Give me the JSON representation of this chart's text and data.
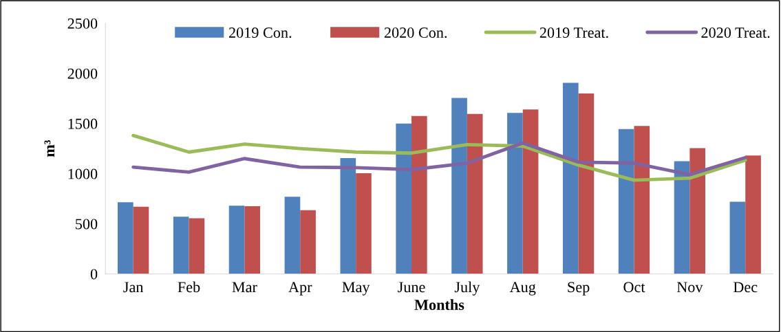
{
  "chart_data": {
    "type": "bar",
    "xlabel": "Months",
    "ylabel": "m³",
    "categories": [
      "Jan",
      "Feb",
      "Mar",
      "Apr",
      "May",
      "June",
      "July",
      "Aug",
      "Sep",
      "Oct",
      "Nov",
      "Dec"
    ],
    "series": [
      {
        "name": "2019 Con.",
        "color": "#4f81bd",
        "values": [
          715,
          570,
          680,
          770,
          1155,
          1500,
          1755,
          1605,
          1905,
          1445,
          1125,
          720
        ]
      },
      {
        "name": "2020 Con.",
        "color": "#c0504d",
        "values": [
          670,
          555,
          675,
          635,
          1005,
          1575,
          1595,
          1640,
          1800,
          1475,
          1255,
          1180
        ]
      },
      {
        "name": "2019 Treat.",
        "type": "line",
        "color": "#9bbb59",
        "values": [
          1380,
          1215,
          1295,
          1250,
          1215,
          1205,
          1290,
          1275,
          1085,
          935,
          955,
          1135
        ]
      },
      {
        "name": "2020 Treat.",
        "type": "line",
        "color": "#8064a2",
        "values": [
          1065,
          1015,
          1150,
          1065,
          1060,
          1040,
          1105,
          1305,
          1115,
          1105,
          990,
          1160
        ]
      }
    ],
    "ylim": [
      0,
      2500
    ],
    "yticks": [
      0,
      500,
      1000,
      1500,
      2000,
      2500
    ],
    "grid": false,
    "legend": "top",
    "marker": "none",
    "line_style": "solid"
  }
}
